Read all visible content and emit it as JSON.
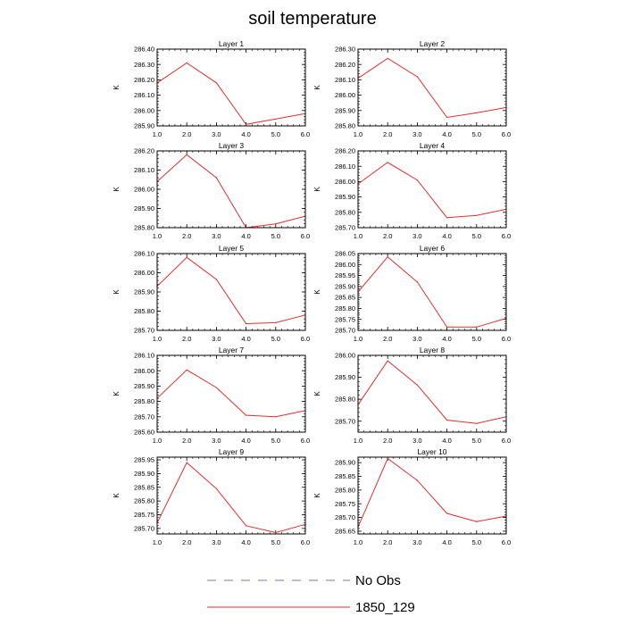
{
  "title": "soil temperature",
  "chart_data": [
    {
      "type": "line",
      "title": "Layer 1",
      "ylabel": "K",
      "x": [
        1,
        2,
        3,
        4,
        5,
        6
      ],
      "xlim": [
        1,
        6
      ],
      "xticks": [
        "1.0",
        "2.0",
        "3.0",
        "4.0",
        "5.0",
        "6.0"
      ],
      "ylim": [
        285.9,
        286.4
      ],
      "yticks": [
        "285.90",
        "286.00",
        "286.10",
        "286.20",
        "286.30",
        "286.40"
      ],
      "series": [
        {
          "name": "1850_129",
          "values": [
            286.18,
            286.31,
            286.18,
            285.91,
            285.945,
            285.98
          ]
        }
      ]
    },
    {
      "type": "line",
      "title": "Layer 2",
      "ylabel": "K",
      "x": [
        1,
        2,
        3,
        4,
        5,
        6
      ],
      "xlim": [
        1,
        6
      ],
      "xticks": [
        "1.0",
        "2.0",
        "3.0",
        "4.0",
        "5.0",
        "6.0"
      ],
      "ylim": [
        285.8,
        286.3
      ],
      "yticks": [
        "285.80",
        "285.90",
        "286.00",
        "286.10",
        "286.20",
        "286.30"
      ],
      "series": [
        {
          "name": "1850_129",
          "values": [
            286.11,
            286.24,
            286.12,
            285.855,
            285.885,
            285.92
          ]
        }
      ]
    },
    {
      "type": "line",
      "title": "Layer 3",
      "ylabel": "K",
      "x": [
        1,
        2,
        3,
        4,
        5,
        6
      ],
      "xlim": [
        1,
        6
      ],
      "xticks": [
        "1.0",
        "2.0",
        "3.0",
        "4.0",
        "5.0",
        "6.0"
      ],
      "ylim": [
        285.8,
        286.2
      ],
      "yticks": [
        "285.80",
        "285.90",
        "286.00",
        "286.10",
        "286.20"
      ],
      "series": [
        {
          "name": "1850_129",
          "values": [
            286.04,
            286.18,
            286.06,
            285.8,
            285.82,
            285.86
          ]
        }
      ]
    },
    {
      "type": "line",
      "title": "Layer 4",
      "ylabel": "K",
      "x": [
        1,
        2,
        3,
        4,
        5,
        6
      ],
      "xlim": [
        1,
        6
      ],
      "xticks": [
        "1.0",
        "2.0",
        "3.0",
        "4.0",
        "5.0",
        "6.0"
      ],
      "ylim": [
        285.7,
        286.2
      ],
      "yticks": [
        "285.70",
        "285.80",
        "285.90",
        "286.00",
        "286.10",
        "286.20"
      ],
      "series": [
        {
          "name": "1850_129",
          "values": [
            285.985,
            286.125,
            286.01,
            285.765,
            285.78,
            285.82
          ]
        }
      ]
    },
    {
      "type": "line",
      "title": "Layer 5",
      "ylabel": "K",
      "x": [
        1,
        2,
        3,
        4,
        5,
        6
      ],
      "xlim": [
        1,
        6
      ],
      "xticks": [
        "1.0",
        "2.0",
        "3.0",
        "4.0",
        "5.0",
        "6.0"
      ],
      "ylim": [
        285.7,
        286.1
      ],
      "yticks": [
        "285.70",
        "285.80",
        "285.90",
        "286.00",
        "286.10"
      ],
      "series": [
        {
          "name": "1850_129",
          "values": [
            285.93,
            286.08,
            285.965,
            285.735,
            285.74,
            285.78
          ]
        }
      ]
    },
    {
      "type": "line",
      "title": "Layer 6",
      "ylabel": "K",
      "x": [
        1,
        2,
        3,
        4,
        5,
        6
      ],
      "xlim": [
        1,
        6
      ],
      "xticks": [
        "1.0",
        "2.0",
        "3.0",
        "4.0",
        "5.0",
        "6.0"
      ],
      "ylim": [
        285.7,
        286.05
      ],
      "yticks": [
        "285.70",
        "285.75",
        "285.80",
        "285.85",
        "285.90",
        "285.95",
        "286.00",
        "286.05"
      ],
      "series": [
        {
          "name": "1850_129",
          "values": [
            285.875,
            286.035,
            285.92,
            285.715,
            285.715,
            285.755
          ]
        }
      ]
    },
    {
      "type": "line",
      "title": "Layer 7",
      "ylabel": "K",
      "x": [
        1,
        2,
        3,
        4,
        5,
        6
      ],
      "xlim": [
        1,
        6
      ],
      "xticks": [
        "1.0",
        "2.0",
        "3.0",
        "4.0",
        "5.0",
        "6.0"
      ],
      "ylim": [
        285.6,
        286.1
      ],
      "yticks": [
        "285.60",
        "285.70",
        "285.80",
        "285.90",
        "286.00",
        "286.10"
      ],
      "series": [
        {
          "name": "1850_129",
          "values": [
            285.82,
            286.005,
            285.89,
            285.71,
            285.7,
            285.74
          ]
        }
      ]
    },
    {
      "type": "line",
      "title": "Layer 8",
      "ylabel": "K",
      "x": [
        1,
        2,
        3,
        4,
        5,
        6
      ],
      "xlim": [
        1,
        6
      ],
      "xticks": [
        "1.0",
        "2.0",
        "3.0",
        "4.0",
        "5.0",
        "6.0"
      ],
      "ylim": [
        285.65,
        286.0
      ],
      "yticks": [
        "285.70",
        "285.80",
        "285.90",
        "286.00"
      ],
      "series": [
        {
          "name": "1850_129",
          "values": [
            285.775,
            285.975,
            285.865,
            285.705,
            285.69,
            285.72
          ]
        }
      ]
    },
    {
      "type": "line",
      "title": "Layer 9",
      "ylabel": "K",
      "x": [
        1,
        2,
        3,
        4,
        5,
        6
      ],
      "xlim": [
        1,
        6
      ],
      "xticks": [
        "1.0",
        "2.0",
        "3.0",
        "4.0",
        "5.0",
        "6.0"
      ],
      "ylim": [
        285.68,
        285.96
      ],
      "yticks": [
        "285.70",
        "285.75",
        "285.80",
        "285.85",
        "285.90",
        "285.95"
      ],
      "series": [
        {
          "name": "1850_129",
          "values": [
            285.72,
            285.94,
            285.845,
            285.71,
            285.685,
            285.715
          ]
        }
      ]
    },
    {
      "type": "line",
      "title": "Layer 10",
      "ylabel": "K",
      "x": [
        1,
        2,
        3,
        4,
        5,
        6
      ],
      "xlim": [
        1,
        6
      ],
      "xticks": [
        "1.0",
        "2.0",
        "3.0",
        "4.0",
        "5.0",
        "6.0"
      ],
      "ylim": [
        285.64,
        285.92
      ],
      "yticks": [
        "285.65",
        "285.70",
        "285.75",
        "285.80",
        "285.85",
        "285.90"
      ],
      "series": [
        {
          "name": "1850_129",
          "values": [
            285.665,
            285.915,
            285.835,
            285.715,
            285.685,
            285.705
          ]
        }
      ]
    }
  ],
  "legend": [
    {
      "label": "No Obs",
      "style": "dashed",
      "color": "#7a7aa8"
    },
    {
      "label": "1850_129",
      "style": "solid",
      "color": "#e03030"
    }
  ]
}
